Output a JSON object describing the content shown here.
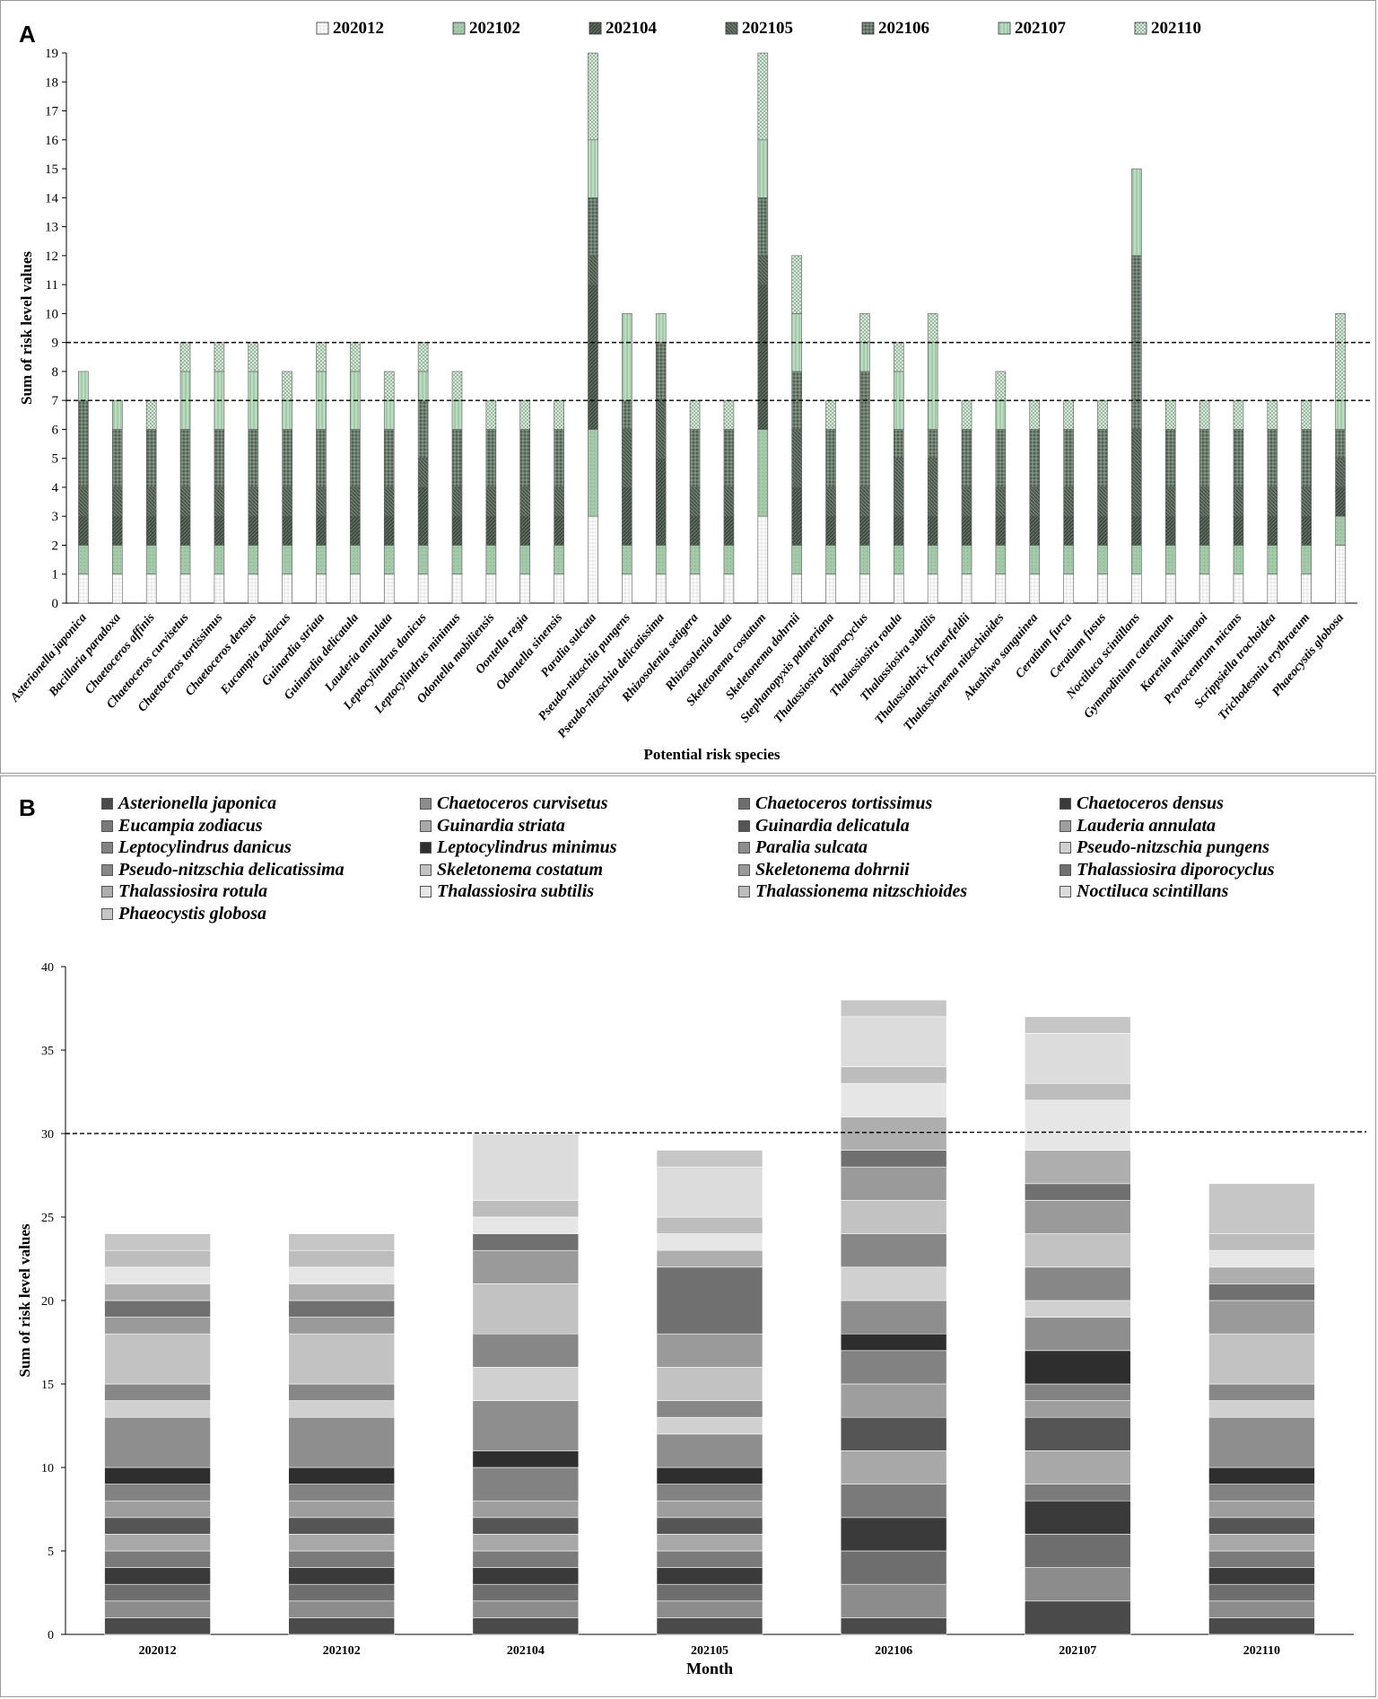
{
  "panels": {
    "a": {
      "letter": "A"
    },
    "b": {
      "letter": "B"
    }
  },
  "chart_data": [
    {
      "type": "bar",
      "stacked": true,
      "panel": "A",
      "xlabel": "Potential risk species",
      "ylabel": "Sum of risk level values",
      "ylim": [
        0,
        19
      ],
      "yticks": [
        0,
        1,
        2,
        3,
        4,
        5,
        6,
        7,
        8,
        9,
        10,
        11,
        12,
        13,
        14,
        15,
        16,
        17,
        18,
        19
      ],
      "grid": false,
      "legend_position": "top",
      "reference_lines": [
        7,
        9
      ],
      "colors": [
        "#ffffff",
        "#a4c8aa",
        "#3f4a41",
        "#6b7a6d",
        "#4f5f52",
        "#bcdcc2",
        "#d6ead9"
      ],
      "categories": [
        "Asterionella japonica",
        "Bacillaria paradoxa",
        "Chaetoceros affinis",
        "Chaetoceros curvisetus",
        "Chaetoceros tortissimus",
        "Chaetoceros densus",
        "Eucampia zodiacus",
        "Guinardia striata",
        "Guinardia delicatula",
        "Lauderia annulata",
        "Leptocylindrus danicus",
        "Leptocylindrus minimus",
        "Odontella mobiliensis",
        "Oontella regia",
        "Odontella sinensis",
        "Paralia sulcata",
        "Pseudo-nitzschia pungens",
        "Pseudo-nitzschia delicatissima",
        "Rhizosolenia setigera",
        "Rhizosolenia alata",
        "Skeletonema costatum",
        "Skeletonema dohrnii",
        "Stephanopyxis palmeriana",
        "Thalassiosira diporocyclus",
        "Thalassiosira rotula",
        "Thalassiosira subtilis",
        "Thalassiothrix frauenfeldii",
        "Thalassionema nitzschioides",
        "Akashiwo sanguinea",
        "Ceratium furca",
        "Ceratium fusus",
        "Noctiluca scintillans",
        "Gymnodinium catenatum",
        "Karenia mikimotoi",
        "Prorocentrum micans",
        "Scrippsiella trochoidea",
        "Trichodesmiu erythraeum",
        "Phaeocystis globosa"
      ],
      "series": [
        {
          "name": "202012",
          "values": [
            1,
            1,
            1,
            1,
            1,
            1,
            1,
            1,
            1,
            1,
            1,
            1,
            1,
            1,
            1,
            3,
            1,
            1,
            1,
            1,
            3,
            1,
            1,
            1,
            1,
            1,
            1,
            1,
            1,
            1,
            1,
            1,
            1,
            1,
            1,
            1,
            1,
            2
          ]
        },
        {
          "name": "202102",
          "values": [
            1,
            1,
            1,
            1,
            1,
            1,
            1,
            1,
            1,
            1,
            1,
            1,
            1,
            1,
            1,
            3,
            1,
            1,
            1,
            1,
            3,
            1,
            1,
            1,
            1,
            1,
            1,
            1,
            1,
            1,
            1,
            1,
            1,
            1,
            1,
            1,
            1,
            1
          ]
        },
        {
          "name": "202104",
          "values": [
            1,
            1,
            1,
            1,
            1,
            1,
            1,
            1,
            1,
            1,
            2,
            1,
            1,
            1,
            1,
            5,
            2,
            3,
            1,
            1,
            5,
            2,
            1,
            1,
            1,
            1,
            1,
            1,
            1,
            1,
            1,
            1,
            1,
            1,
            1,
            1,
            1,
            1
          ]
        },
        {
          "name": "202105",
          "values": [
            1,
            1,
            1,
            1,
            1,
            1,
            1,
            1,
            1,
            1,
            1,
            1,
            1,
            1,
            1,
            1,
            2,
            2,
            1,
            1,
            1,
            2,
            1,
            1,
            2,
            2,
            1,
            1,
            1,
            1,
            1,
            3,
            1,
            1,
            1,
            1,
            1,
            1
          ]
        },
        {
          "name": "202106",
          "values": [
            3,
            2,
            2,
            2,
            2,
            2,
            2,
            2,
            2,
            2,
            2,
            2,
            2,
            2,
            2,
            2,
            1,
            2,
            2,
            2,
            2,
            2,
            2,
            4,
            1,
            1,
            2,
            2,
            2,
            2,
            2,
            6,
            2,
            2,
            2,
            2,
            2,
            1
          ]
        },
        {
          "name": "202107",
          "values": [
            1,
            1,
            0,
            2,
            2,
            2,
            1,
            2,
            2,
            1,
            1,
            1,
            0,
            0,
            0,
            2,
            3,
            1,
            0,
            0,
            2,
            2,
            0,
            1,
            2,
            3,
            0,
            1,
            0,
            0,
            0,
            3,
            0,
            0,
            0,
            0,
            0,
            1
          ]
        },
        {
          "name": "202110",
          "values": [
            0,
            0,
            1,
            1,
            1,
            1,
            1,
            1,
            1,
            1,
            1,
            1,
            1,
            1,
            1,
            3,
            0,
            0,
            1,
            1,
            3,
            2,
            1,
            1,
            1,
            1,
            1,
            1,
            1,
            1,
            1,
            0,
            1,
            1,
            1,
            1,
            1,
            3
          ]
        }
      ]
    },
    {
      "type": "bar",
      "stacked": true,
      "panel": "B",
      "xlabel": "Month",
      "ylabel": "Sum of risk level values",
      "ylim": [
        0,
        40
      ],
      "yticks": [
        0,
        5,
        10,
        15,
        20,
        25,
        30,
        35,
        40
      ],
      "grid": false,
      "legend_position": "top",
      "reference_lines": [
        30
      ],
      "categories": [
        "202012",
        "202102",
        "202104",
        "202105",
        "202106",
        "202107",
        "202110"
      ],
      "colors": [
        "#4a4a4a",
        "#8c8c8c",
        "#6e6e6e",
        "#3a3a3a",
        "#7a7a7a",
        "#a8a8a8",
        "#555555",
        "#9e9e9e",
        "#828282",
        "#2e2e2e",
        "#8e8e8e",
        "#d0d0d0",
        "#878787",
        "#c2c2c2",
        "#9a9a9a",
        "#707070",
        "#aeaeae",
        "#e6e6e6",
        "#bdbdbd",
        "#dcdcdc",
        "#c6c6c6"
      ],
      "series": [
        {
          "name": "Asterionella japonica",
          "values": [
            1,
            1,
            1,
            1,
            1,
            2,
            1
          ]
        },
        {
          "name": "Chaetoceros curvisetus",
          "values": [
            1,
            1,
            1,
            1,
            2,
            2,
            1
          ]
        },
        {
          "name": "Chaetoceros tortissimus",
          "values": [
            1,
            1,
            1,
            1,
            2,
            2,
            1
          ]
        },
        {
          "name": "Chaetoceros densus",
          "values": [
            1,
            1,
            1,
            1,
            2,
            2,
            1
          ]
        },
        {
          "name": "Eucampia zodiacus",
          "values": [
            1,
            1,
            1,
            1,
            2,
            1,
            1
          ]
        },
        {
          "name": "Guinardia striata",
          "values": [
            1,
            1,
            1,
            1,
            2,
            2,
            1
          ]
        },
        {
          "name": "Guinardia delicatula",
          "values": [
            1,
            1,
            1,
            1,
            2,
            2,
            1
          ]
        },
        {
          "name": "Lauderia annulata",
          "values": [
            1,
            1,
            1,
            1,
            2,
            1,
            1
          ]
        },
        {
          "name": "Leptocylindrus danicus",
          "values": [
            1,
            1,
            2,
            1,
            2,
            1,
            1
          ]
        },
        {
          "name": "Leptocylindrus minimus",
          "values": [
            1,
            1,
            1,
            1,
            1,
            2,
            1
          ]
        },
        {
          "name": "Paralia sulcata",
          "values": [
            3,
            3,
            3,
            2,
            2,
            2,
            3
          ]
        },
        {
          "name": "Pseudo-nitzschia pungens",
          "values": [
            1,
            1,
            2,
            1,
            2,
            1,
            1
          ]
        },
        {
          "name": "Pseudo-nitzschia delicatissima",
          "values": [
            1,
            1,
            2,
            1,
            2,
            2,
            1
          ]
        },
        {
          "name": "Skeletonema costatum",
          "values": [
            3,
            3,
            3,
            2,
            2,
            2,
            3
          ]
        },
        {
          "name": "Skeletonema dohrnii",
          "values": [
            1,
            1,
            2,
            2,
            2,
            2,
            2
          ]
        },
        {
          "name": "Thalassiosira diporocyclus",
          "values": [
            1,
            1,
            1,
            4,
            1,
            1,
            1
          ]
        },
        {
          "name": "Thalassiosira rotula",
          "values": [
            1,
            1,
            0,
            1,
            2,
            2,
            1
          ]
        },
        {
          "name": "Thalassiosira subtilis",
          "values": [
            1,
            1,
            1,
            1,
            2,
            3,
            1
          ]
        },
        {
          "name": "Thalassionema nitzschioides",
          "values": [
            1,
            1,
            1,
            1,
            1,
            1,
            1
          ]
        },
        {
          "name": "Noctiluca scintillans",
          "values": [
            0,
            0,
            4,
            3,
            3,
            3,
            0
          ]
        },
        {
          "name": "Phaeocystis globosa",
          "values": [
            1,
            1,
            0,
            1,
            1,
            1,
            3
          ]
        }
      ]
    }
  ]
}
